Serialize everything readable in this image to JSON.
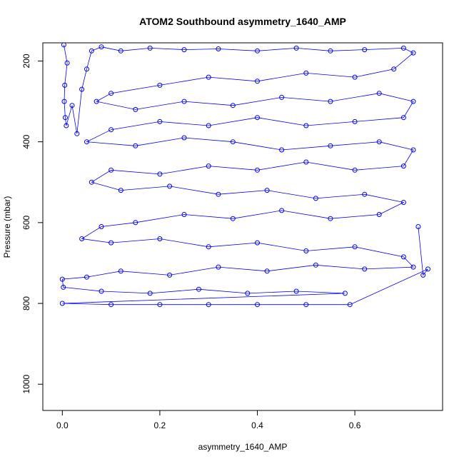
{
  "chart_data": {
    "type": "scatter",
    "title": "ATOM2 Southbound asymmetry_1640_AMP",
    "xlabel": "asymmetry_1640_AMP",
    "ylabel": "Pressure (mbar)",
    "xlim": [
      -0.04,
      0.78
    ],
    "ylim": [
      1065,
      155
    ],
    "y_reversed": true,
    "x_ticks": [
      0.0,
      0.2,
      0.4,
      0.6
    ],
    "x_tick_labels": [
      "0.0",
      "0.2",
      "0.4",
      "0.6"
    ],
    "y_ticks": [
      200,
      400,
      600,
      800,
      1000
    ],
    "y_tick_labels": [
      "200",
      "400",
      "600",
      "800",
      "1000"
    ],
    "marker": "open-circle",
    "connected_by_lines": true,
    "grid": false,
    "series": [
      {
        "color": "#0000ff",
        "points": [
          [
            0.003,
            160
          ],
          [
            0.01,
            205
          ],
          [
            0.005,
            260
          ],
          [
            0.004,
            300
          ],
          [
            0.006,
            340
          ],
          [
            0.008,
            360
          ],
          [
            0.02,
            310
          ],
          [
            0.03,
            380
          ],
          [
            0.04,
            270
          ],
          [
            0.05,
            220
          ],
          [
            0.06,
            175
          ],
          [
            0.08,
            165
          ],
          [
            0.12,
            175
          ],
          [
            0.18,
            168
          ],
          [
            0.25,
            172
          ],
          [
            0.32,
            170
          ],
          [
            0.4,
            175
          ],
          [
            0.48,
            168
          ],
          [
            0.55,
            175
          ],
          [
            0.62,
            172
          ],
          [
            0.7,
            168
          ],
          [
            0.72,
            180
          ],
          [
            0.68,
            220
          ],
          [
            0.6,
            240
          ],
          [
            0.5,
            230
          ],
          [
            0.4,
            250
          ],
          [
            0.3,
            240
          ],
          [
            0.2,
            260
          ],
          [
            0.1,
            280
          ],
          [
            0.07,
            300
          ],
          [
            0.15,
            320
          ],
          [
            0.25,
            300
          ],
          [
            0.35,
            310
          ],
          [
            0.45,
            290
          ],
          [
            0.55,
            300
          ],
          [
            0.65,
            280
          ],
          [
            0.72,
            300
          ],
          [
            0.7,
            340
          ],
          [
            0.6,
            350
          ],
          [
            0.5,
            360
          ],
          [
            0.4,
            340
          ],
          [
            0.3,
            360
          ],
          [
            0.2,
            350
          ],
          [
            0.1,
            370
          ],
          [
            0.05,
            400
          ],
          [
            0.15,
            410
          ],
          [
            0.25,
            390
          ],
          [
            0.35,
            400
          ],
          [
            0.45,
            420
          ],
          [
            0.55,
            410
          ],
          [
            0.65,
            400
          ],
          [
            0.72,
            420
          ],
          [
            0.7,
            460
          ],
          [
            0.6,
            470
          ],
          [
            0.5,
            450
          ],
          [
            0.4,
            470
          ],
          [
            0.3,
            460
          ],
          [
            0.2,
            480
          ],
          [
            0.1,
            470
          ],
          [
            0.06,
            500
          ],
          [
            0.12,
            520
          ],
          [
            0.22,
            510
          ],
          [
            0.32,
            530
          ],
          [
            0.42,
            520
          ],
          [
            0.52,
            540
          ],
          [
            0.62,
            530
          ],
          [
            0.7,
            550
          ],
          [
            0.65,
            580
          ],
          [
            0.55,
            590
          ],
          [
            0.45,
            570
          ],
          [
            0.35,
            590
          ],
          [
            0.25,
            580
          ],
          [
            0.15,
            600
          ],
          [
            0.08,
            610
          ],
          [
            0.04,
            640
          ],
          [
            0.1,
            650
          ],
          [
            0.2,
            640
          ],
          [
            0.3,
            660
          ],
          [
            0.4,
            650
          ],
          [
            0.5,
            670
          ],
          [
            0.6,
            660
          ],
          [
            0.7,
            685
          ],
          [
            0.72,
            710
          ],
          [
            0.62,
            715
          ],
          [
            0.52,
            705
          ],
          [
            0.42,
            720
          ],
          [
            0.32,
            710
          ],
          [
            0.22,
            730
          ],
          [
            0.12,
            720
          ],
          [
            0.05,
            735
          ],
          [
            0.0,
            740
          ],
          [
            0.002,
            760
          ],
          [
            0.08,
            770
          ],
          [
            0.18,
            775
          ],
          [
            0.28,
            765
          ],
          [
            0.38,
            775
          ],
          [
            0.48,
            770
          ],
          [
            0.58,
            775
          ],
          [
            0.0,
            800
          ],
          [
            0.1,
            803
          ],
          [
            0.2,
            803
          ],
          [
            0.3,
            803
          ],
          [
            0.4,
            803
          ],
          [
            0.5,
            803
          ],
          [
            0.59,
            803
          ],
          [
            0.75,
            715
          ],
          [
            0.74,
            730
          ],
          [
            0.73,
            610
          ]
        ]
      }
    ]
  }
}
